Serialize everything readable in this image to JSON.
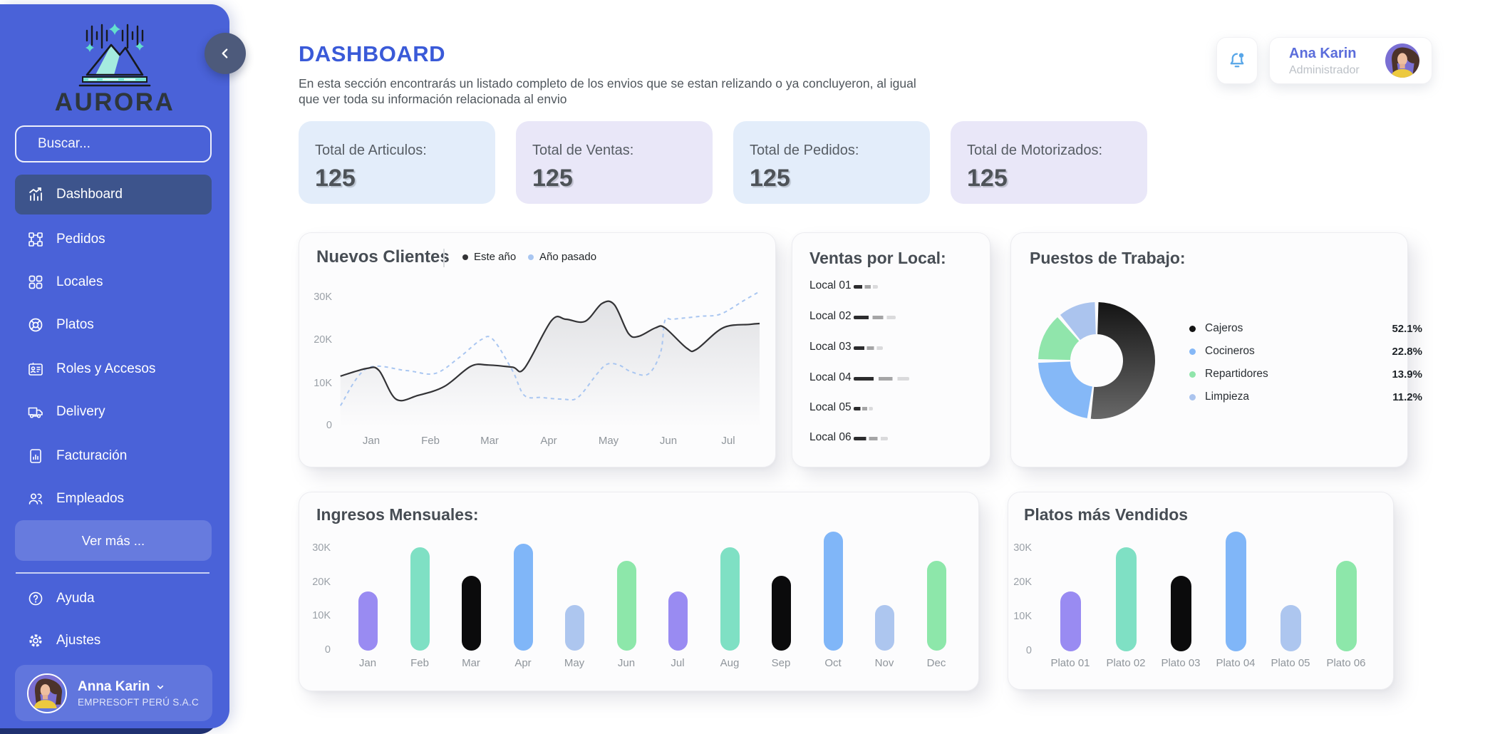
{
  "sidebar": {
    "logo_text": "AURORA",
    "search_placeholder": "Buscar...",
    "items": [
      {
        "label": "Dashboard",
        "active": true
      },
      {
        "label": "Pedidos",
        "active": false
      },
      {
        "label": "Locales",
        "active": false
      },
      {
        "label": "Platos",
        "active": false
      },
      {
        "label": "Roles y Accesos",
        "active": false
      },
      {
        "label": "Delivery",
        "active": false
      },
      {
        "label": "Facturación",
        "active": false
      },
      {
        "label": "Empleados",
        "active": false
      }
    ],
    "more_button": "Ver más ...",
    "footer_items": [
      {
        "label": "Ayuda"
      },
      {
        "label": "Ajustes"
      }
    ],
    "user": {
      "name": "Anna Karin",
      "company": "EMPRESOFT PERÚ S.A.C"
    }
  },
  "header": {
    "title": "DASHBOARD",
    "subtitle_line1": "En esta sección encontrarás un listado completo de los envios que se estan relizando o ya concluyeron, al igual",
    "subtitle_line2": "que ver toda su información relacionada al envio",
    "user": {
      "name": "Ana Karin",
      "role": "Administrador"
    }
  },
  "stats": [
    {
      "label": "Total de Articulos:",
      "value": "125"
    },
    {
      "label": "Total de Ventas:",
      "value": "125"
    },
    {
      "label": "Total de Pedidos:",
      "value": "125"
    },
    {
      "label": "Total de Motorizados:",
      "value": "125"
    }
  ],
  "chart_data": [
    {
      "id": "nuevos_clientes",
      "type": "line",
      "title": "Nuevos Clientes",
      "legend": [
        {
          "label": "Este año",
          "color": "#333336",
          "style": "solid"
        },
        {
          "label": "Año pasado",
          "color": "#a9c6f1",
          "style": "dashed"
        }
      ],
      "x_ticks": [
        "Jan",
        "Feb",
        "Mar",
        "Apr",
        "May",
        "Jun",
        "Jul"
      ],
      "y_ticks": [
        "30K",
        "20K",
        "10K",
        "0"
      ],
      "ylim_k": [
        0,
        33
      ],
      "series": [
        {
          "name": "Este año",
          "color": "#333336",
          "dash": "",
          "fill": true,
          "points": [
            [
              0.013,
              11.7
            ],
            [
              0.075,
              13.5
            ],
            [
              0.104,
              13.0
            ],
            [
              0.144,
              6.3
            ],
            [
              0.196,
              7.2
            ],
            [
              0.258,
              9.3
            ],
            [
              0.32,
              14.0
            ],
            [
              0.361,
              14.3
            ],
            [
              0.418,
              13.8
            ],
            [
              0.446,
              13.5
            ],
            [
              0.51,
              24.7
            ],
            [
              0.544,
              25.0
            ],
            [
              0.589,
              24.5
            ],
            [
              0.629,
              28.7
            ],
            [
              0.658,
              28.4
            ],
            [
              0.691,
              21.7
            ],
            [
              0.715,
              21.0
            ],
            [
              0.755,
              23.0
            ],
            [
              0.777,
              23.0
            ],
            [
              0.829,
              18.2
            ],
            [
              0.852,
              18.0
            ],
            [
              0.914,
              23.0
            ],
            [
              0.977,
              23.8
            ],
            [
              1,
              24.0
            ]
          ]
        },
        {
          "name": "Año pasado",
          "color": "#a9c6f1",
          "dash": "5 5",
          "fill": false,
          "points": [
            [
              0.013,
              4.8
            ],
            [
              0.075,
              13.5
            ],
            [
              0.168,
              13.0
            ],
            [
              0.235,
              12.3
            ],
            [
              0.292,
              16.0
            ],
            [
              0.344,
              20.2
            ],
            [
              0.372,
              20.3
            ],
            [
              0.418,
              13.0
            ],
            [
              0.446,
              7.2
            ],
            [
              0.487,
              6.7
            ],
            [
              0.537,
              6.3
            ],
            [
              0.572,
              6.7
            ],
            [
              0.617,
              12.2
            ],
            [
              0.641,
              14.5
            ],
            [
              0.669,
              14.3
            ],
            [
              0.698,
              12.7
            ],
            [
              0.738,
              12.2
            ],
            [
              0.767,
              17.3
            ],
            [
              0.777,
              24.7
            ],
            [
              0.795,
              25.0
            ],
            [
              0.862,
              25.7
            ],
            [
              0.908,
              26.2
            ],
            [
              0.965,
              29.5
            ],
            [
              1,
              31.5
            ]
          ]
        }
      ]
    },
    {
      "id": "ventas_por_local",
      "type": "bar",
      "orientation": "horizontal",
      "title": "Ventas por Local:",
      "categories": [
        "Local 01",
        "Local 02",
        "Local 03",
        "Local 04",
        "Local 05",
        "Local 06"
      ],
      "values_pct_of_max": [
        43,
        75,
        53,
        100,
        35,
        61
      ]
    },
    {
      "id": "puestos_de_trabajo",
      "type": "pie",
      "title": "Puestos de Trabajo:",
      "slices": [
        {
          "label": "Cajeros",
          "value": 52.1,
          "display": "52.1%",
          "color": "#141414",
          "color2": "#6a6a6a"
        },
        {
          "label": "Cocineros",
          "value": 22.8,
          "display": "22.8%",
          "color": "#85b8f7"
        },
        {
          "label": "Repartidores",
          "value": 13.9,
          "display": "13.9%",
          "color": "#90e5ab"
        },
        {
          "label": "Limpieza",
          "value": 11.2,
          "display": "11.2%",
          "color": "#abc4ee"
        }
      ]
    },
    {
      "id": "ingresos_mensuales",
      "type": "bar",
      "title": "Ingresos Mensuales:",
      "categories": [
        "Jan",
        "Feb",
        "Mar",
        "Apr",
        "May",
        "Jun",
        "Jul",
        "Aug",
        "Sep",
        "Oct",
        "Nov",
        "Dec"
      ],
      "values_k": [
        17.5,
        30.5,
        22,
        31.5,
        13.5,
        26.5,
        17.5,
        30.5,
        22,
        35,
        13.5,
        26.5
      ],
      "colors": [
        "#998bf2",
        "#7fe0c4",
        "#0b0b0c",
        "#80b6f8",
        "#adc6ef",
        "#8de7aa",
        "#998bf2",
        "#7fe0c4",
        "#0b0b0c",
        "#80b6f8",
        "#adc6ef",
        "#8de7aa"
      ],
      "y_ticks": [
        "30K",
        "20K",
        "10K",
        "0"
      ],
      "ylim_k": [
        0,
        36
      ]
    },
    {
      "id": "platos_mas_vendidos",
      "type": "bar",
      "title": "Platos más Vendidos",
      "categories": [
        "Plato 01",
        "Plato 02",
        "Plato 03",
        "Plato 04",
        "Plato 05",
        "Plato 06"
      ],
      "values_k": [
        17.5,
        30.5,
        22,
        35,
        13.5,
        26.5
      ],
      "colors": [
        "#998bf2",
        "#7fe0c4",
        "#0b0b0c",
        "#80b6f8",
        "#adc6ef",
        "#8de7aa"
      ],
      "y_ticks": [
        "30K",
        "20K",
        "10K",
        "0"
      ],
      "ylim_k": [
        0,
        36
      ]
    }
  ]
}
